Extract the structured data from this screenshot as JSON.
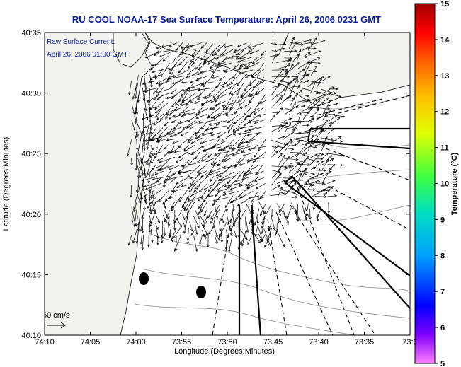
{
  "title": "RU COOL  NOAA-17  Sea Surface Temperature:  April 26, 2006 0231 GMT",
  "annotation": {
    "line1": "Raw Surface Current:",
    "line2": "April 26, 2006 01:00 GMT"
  },
  "scale_label": "50 cm/s",
  "x_axis": {
    "label": "Longitude (Degrees:Minutes)",
    "ticks": [
      "74:10",
      "74:05",
      "74:00",
      "73:55",
      "73:50",
      "73:45",
      "73:40",
      "73:35",
      "73:3"
    ]
  },
  "y_axis": {
    "label": "Latitude (Degrees:Minutes)",
    "ticks": [
      "40:10",
      "40:15",
      "40:20",
      "40:25",
      "40:30",
      "40:35"
    ]
  },
  "colorbar": {
    "label": "Temperature (°C)",
    "ticks": [
      "5",
      "6",
      "7",
      "8",
      "9",
      "10",
      "11",
      "12",
      "13",
      "14",
      "15"
    ],
    "range": [
      5,
      15
    ]
  },
  "colors": {
    "title": "#0a1aa0",
    "land": "#f2f2ee",
    "sea": "#ffffff",
    "contour": "#8c8c8c"
  }
}
